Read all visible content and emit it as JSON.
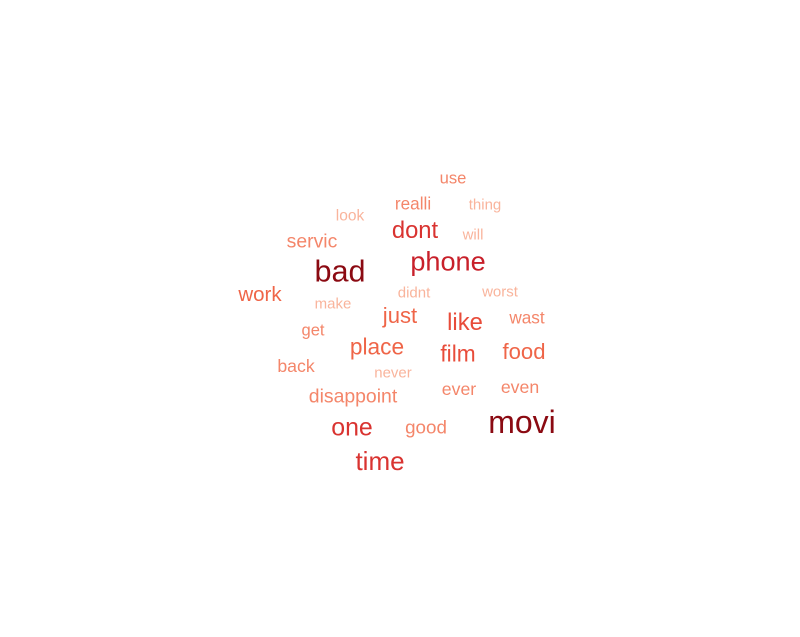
{
  "chart_data": {
    "type": "wordcloud",
    "title": "",
    "words": [
      {
        "text": "movi",
        "weight": 100,
        "color": "#8b0a12"
      },
      {
        "text": "bad",
        "weight": 95,
        "color": "#8b0a12"
      },
      {
        "text": "phone",
        "weight": 82,
        "color": "#c8202a"
      },
      {
        "text": "time",
        "weight": 78,
        "color": "#d93330"
      },
      {
        "text": "one",
        "weight": 74,
        "color": "#d93330"
      },
      {
        "text": "dont",
        "weight": 70,
        "color": "#d93330"
      },
      {
        "text": "like",
        "weight": 70,
        "color": "#e84c3a"
      },
      {
        "text": "film",
        "weight": 66,
        "color": "#e84c3a"
      },
      {
        "text": "place",
        "weight": 66,
        "color": "#ef6548"
      },
      {
        "text": "food",
        "weight": 64,
        "color": "#ef6548"
      },
      {
        "text": "just",
        "weight": 64,
        "color": "#ef6548"
      },
      {
        "text": "work",
        "weight": 58,
        "color": "#ef6548"
      },
      {
        "text": "disappoint",
        "weight": 54,
        "color": "#f4866a"
      },
      {
        "text": "servic",
        "weight": 54,
        "color": "#f4866a"
      },
      {
        "text": "good",
        "weight": 52,
        "color": "#f4866a"
      },
      {
        "text": "ever",
        "weight": 48,
        "color": "#f4866a"
      },
      {
        "text": "even",
        "weight": 48,
        "color": "#f4866a"
      },
      {
        "text": "back",
        "weight": 48,
        "color": "#f4866a"
      },
      {
        "text": "wast",
        "weight": 46,
        "color": "#f4866a"
      },
      {
        "text": "realli",
        "weight": 46,
        "color": "#f4866a"
      },
      {
        "text": "use",
        "weight": 44,
        "color": "#f4866a"
      },
      {
        "text": "get",
        "weight": 44,
        "color": "#f4866a"
      },
      {
        "text": "look",
        "weight": 40,
        "color": "#f9b49c"
      },
      {
        "text": "thing",
        "weight": 38,
        "color": "#f9b49c"
      },
      {
        "text": "will",
        "weight": 38,
        "color": "#f9b49c"
      },
      {
        "text": "make",
        "weight": 38,
        "color": "#f9b49c"
      },
      {
        "text": "didnt",
        "weight": 38,
        "color": "#f9b49c"
      },
      {
        "text": "worst",
        "weight": 38,
        "color": "#f9b49c"
      },
      {
        "text": "never",
        "weight": 38,
        "color": "#f9b49c"
      }
    ]
  }
}
